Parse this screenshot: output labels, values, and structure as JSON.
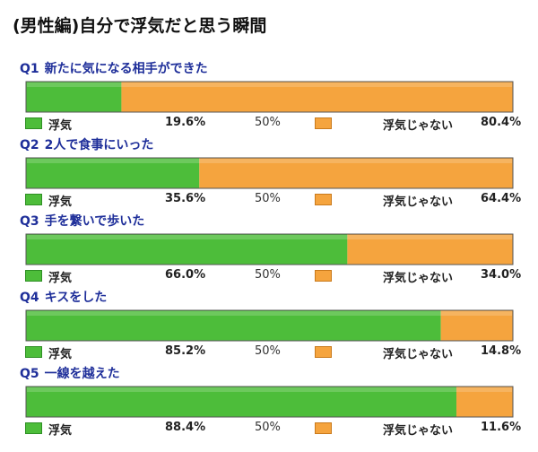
{
  "title": "(男性編)自分で浮気だと思う瞬間",
  "legend": {
    "cheating_label": "浮気",
    "not_cheating_label": "浮気じゃない",
    "midpoint_label": "50%"
  },
  "colors": {
    "cheating": "#4dbd3a",
    "not_cheating": "#f5a43e"
  },
  "chart_data": {
    "type": "bar",
    "orientation": "horizontal-stacked-100",
    "title": "(男性編)自分で浮気だと思う瞬間",
    "categories": [
      "新たに気になる相手ができた",
      "2人で食事にいった",
      "手を繋いで歩いた",
      "キスをした",
      "一線を越えた"
    ],
    "series": [
      {
        "name": "浮気",
        "values": [
          19.6,
          35.6,
          66.0,
          85.2,
          88.4
        ]
      },
      {
        "name": "浮気じゃない",
        "values": [
          80.4,
          64.4,
          34.0,
          14.8,
          11.6
        ]
      }
    ],
    "xlim": [
      0,
      100
    ],
    "unit": "%"
  },
  "questions": [
    {
      "id": "Q1",
      "text": "新たに気になる相手ができた",
      "yes": 19.6,
      "no": 80.4,
      "yes_text": "19.6%",
      "no_text": "80.4%"
    },
    {
      "id": "Q2",
      "text": "2人で食事にいった",
      "yes": 35.6,
      "no": 64.4,
      "yes_text": "35.6%",
      "no_text": "64.4%"
    },
    {
      "id": "Q3",
      "text": "手を繋いで歩いた",
      "yes": 66.0,
      "no": 34.0,
      "yes_text": "66.0%",
      "no_text": "34.0%"
    },
    {
      "id": "Q4",
      "text": "キスをした",
      "yes": 85.2,
      "no": 14.8,
      "yes_text": "85.2%",
      "no_text": "14.8%"
    },
    {
      "id": "Q5",
      "text": "一線を越えた",
      "yes": 88.4,
      "no": 11.6,
      "yes_text": "88.4%",
      "no_text": "11.6%"
    }
  ]
}
